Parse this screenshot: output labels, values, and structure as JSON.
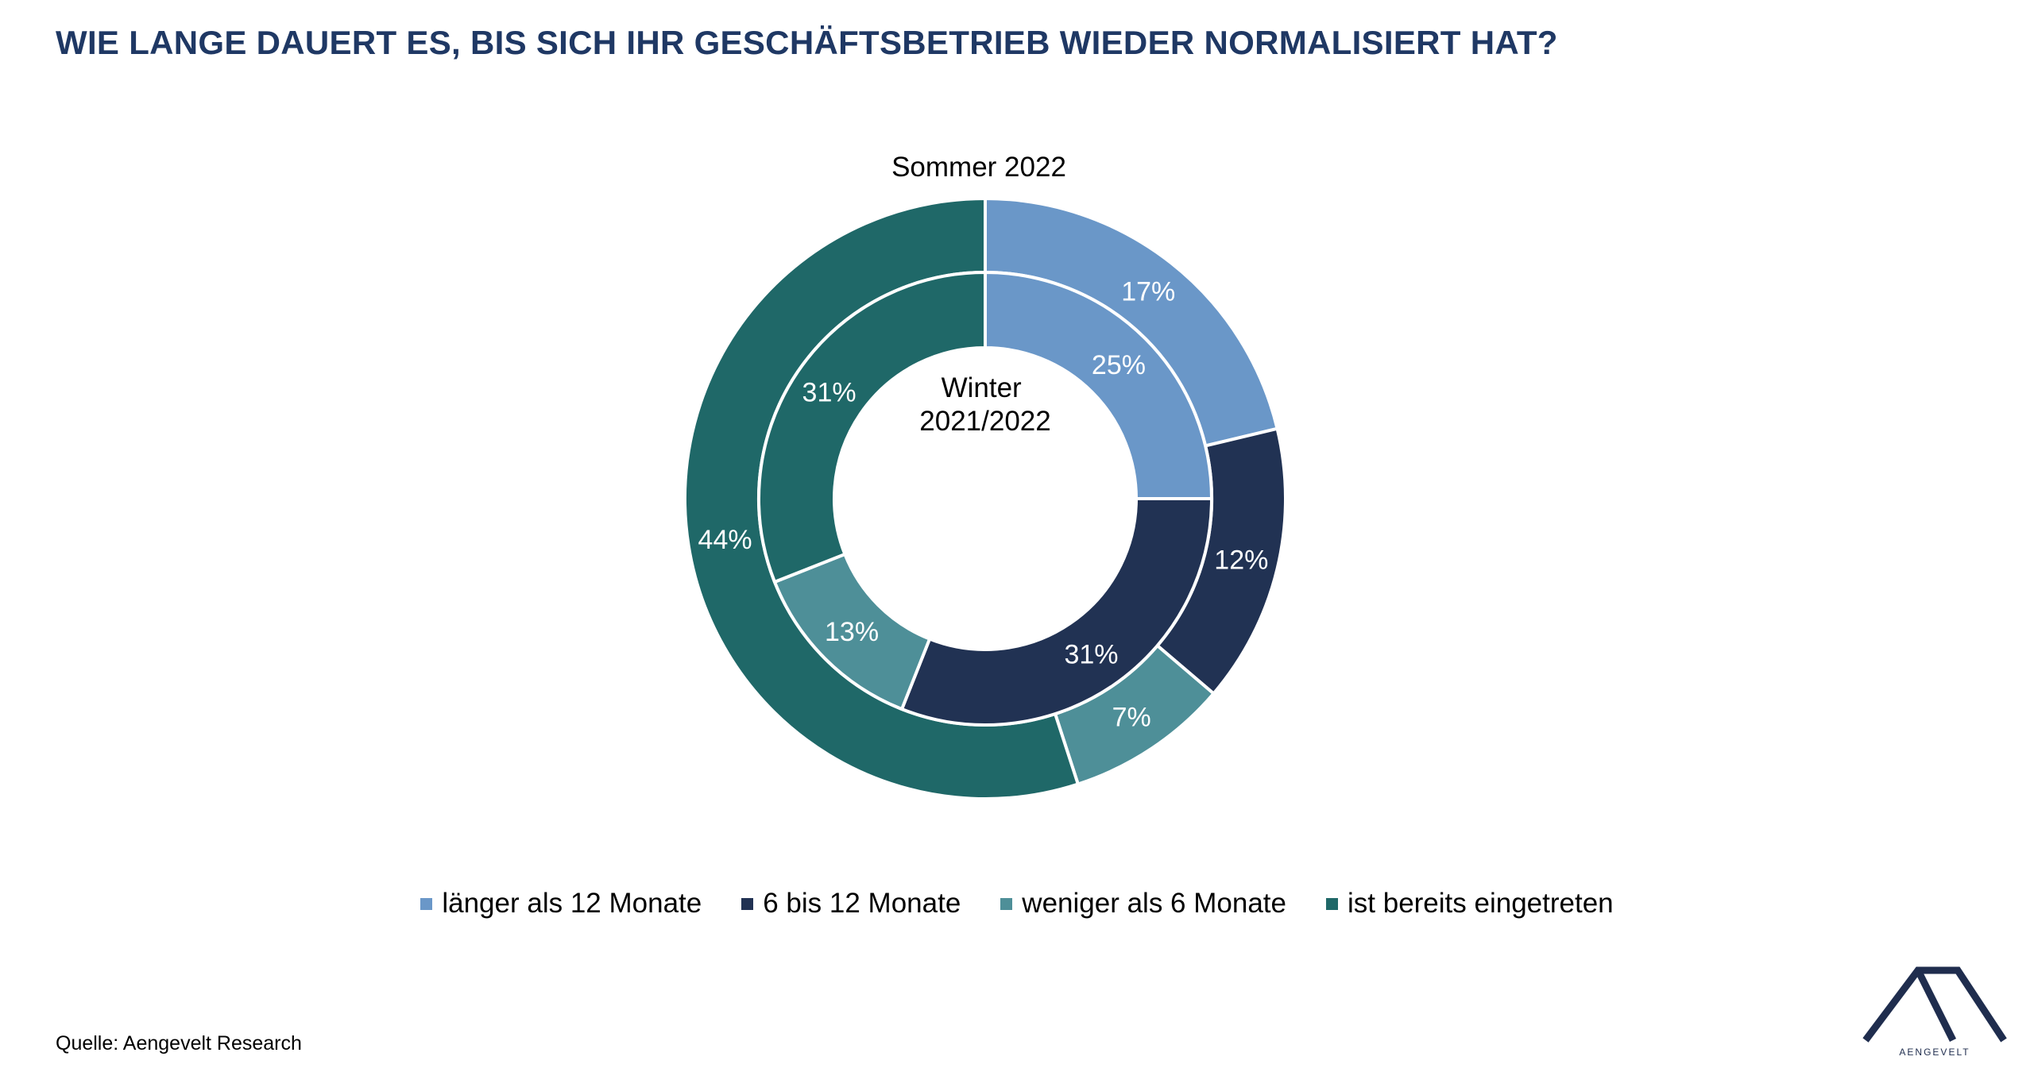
{
  "title": "WIE LANGE DAUERT ES, BIS SICH IHR GESCHÄFTSBETRIEB WIEDER NORMALISIERT HAT?",
  "source": "Quelle: Aengevelt Research",
  "logo": {
    "text": "AENGEVELT"
  },
  "chart_data": {
    "type": "pie",
    "subtype": "nested-donut",
    "categories": [
      "länger als 12 Monate",
      "6 bis 12 Monate",
      "weniger als 6 Monate",
      "ist bereits eingetreten"
    ],
    "colors": [
      "#6a97c8",
      "#213253",
      "#4e8f98",
      "#1f6868"
    ],
    "series": [
      {
        "name": "Sommer 2022",
        "ring": "outer",
        "values": [
          17,
          12,
          7,
          44
        ],
        "labels": [
          "17%",
          "12%",
          "7%",
          "44%"
        ]
      },
      {
        "name": "Winter 2021/2022",
        "ring": "inner",
        "values": [
          25,
          31,
          13,
          31
        ],
        "labels": [
          "25%",
          "31%",
          "13%",
          "31%"
        ]
      }
    ],
    "center_label": [
      "Winter",
      "2021/2022"
    ],
    "outer_label": "Sommer 2022",
    "legend_position": "bottom"
  }
}
